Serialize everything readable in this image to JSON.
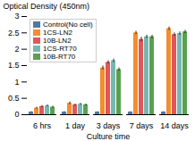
{
  "chart_data": {
    "type": "bar",
    "categories": [
      "6 hrs",
      "1 day",
      "3 days",
      "7 days",
      "14 days"
    ],
    "series": [
      {
        "name": "Control(No cell)",
        "values": [
          0.08,
          0.08,
          0.08,
          0.08,
          0.08
        ],
        "errors": [
          0.01,
          0.01,
          0.01,
          0.01,
          0.01
        ]
      },
      {
        "name": "1CS-LN2",
        "values": [
          0.2,
          0.35,
          1.43,
          2.5,
          2.63
        ],
        "errors": [
          0.03,
          0.04,
          0.06,
          0.05,
          0.05
        ]
      },
      {
        "name": "10B-LN2",
        "values": [
          0.25,
          0.3,
          1.6,
          2.3,
          2.45
        ],
        "errors": [
          0.03,
          0.03,
          0.05,
          0.07,
          0.05
        ]
      },
      {
        "name": "1CS-RT70",
        "values": [
          0.27,
          0.32,
          1.65,
          2.38,
          2.48
        ],
        "errors": [
          0.03,
          0.03,
          0.05,
          0.05,
          0.05
        ]
      },
      {
        "name": "10B-RT70",
        "values": [
          0.23,
          0.3,
          1.38,
          2.38,
          2.53
        ],
        "errors": [
          0.03,
          0.03,
          0.05,
          0.05,
          0.05
        ]
      }
    ],
    "xlabel": "Culture time",
    "ylabel": "Optical Density (450nm)",
    "ylim": [
      0,
      3.0
    ],
    "yticks": [
      0,
      0.5,
      1.0,
      1.5,
      2.0,
      2.5,
      3.0
    ],
    "legend": "upper left"
  }
}
